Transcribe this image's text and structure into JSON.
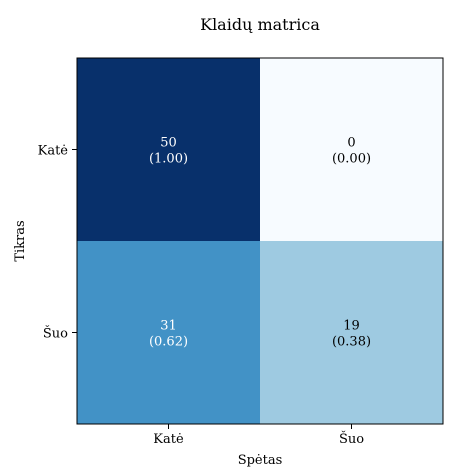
{
  "chart_data": {
    "type": "heatmap",
    "title": "Klaidų matrica",
    "xlabel": "Spėtas",
    "ylabel": "Tikras",
    "x_categories": [
      "Katė",
      "Šuo"
    ],
    "y_categories": [
      "Katė",
      "Šuo"
    ],
    "values": [
      [
        50,
        0
      ],
      [
        31,
        19
      ]
    ],
    "normalized": [
      [
        "(1.00)",
        "(0.00)"
      ],
      [
        "(0.62)",
        "(0.38)"
      ]
    ],
    "colormap": "Blues",
    "cell_colors": [
      [
        "#08306b",
        "#f7fbff"
      ],
      [
        "#4292c6",
        "#9ecae1"
      ]
    ],
    "text_colors": [
      [
        "#ffffff",
        "#000000"
      ],
      [
        "#ffffff",
        "#000000"
      ]
    ]
  }
}
